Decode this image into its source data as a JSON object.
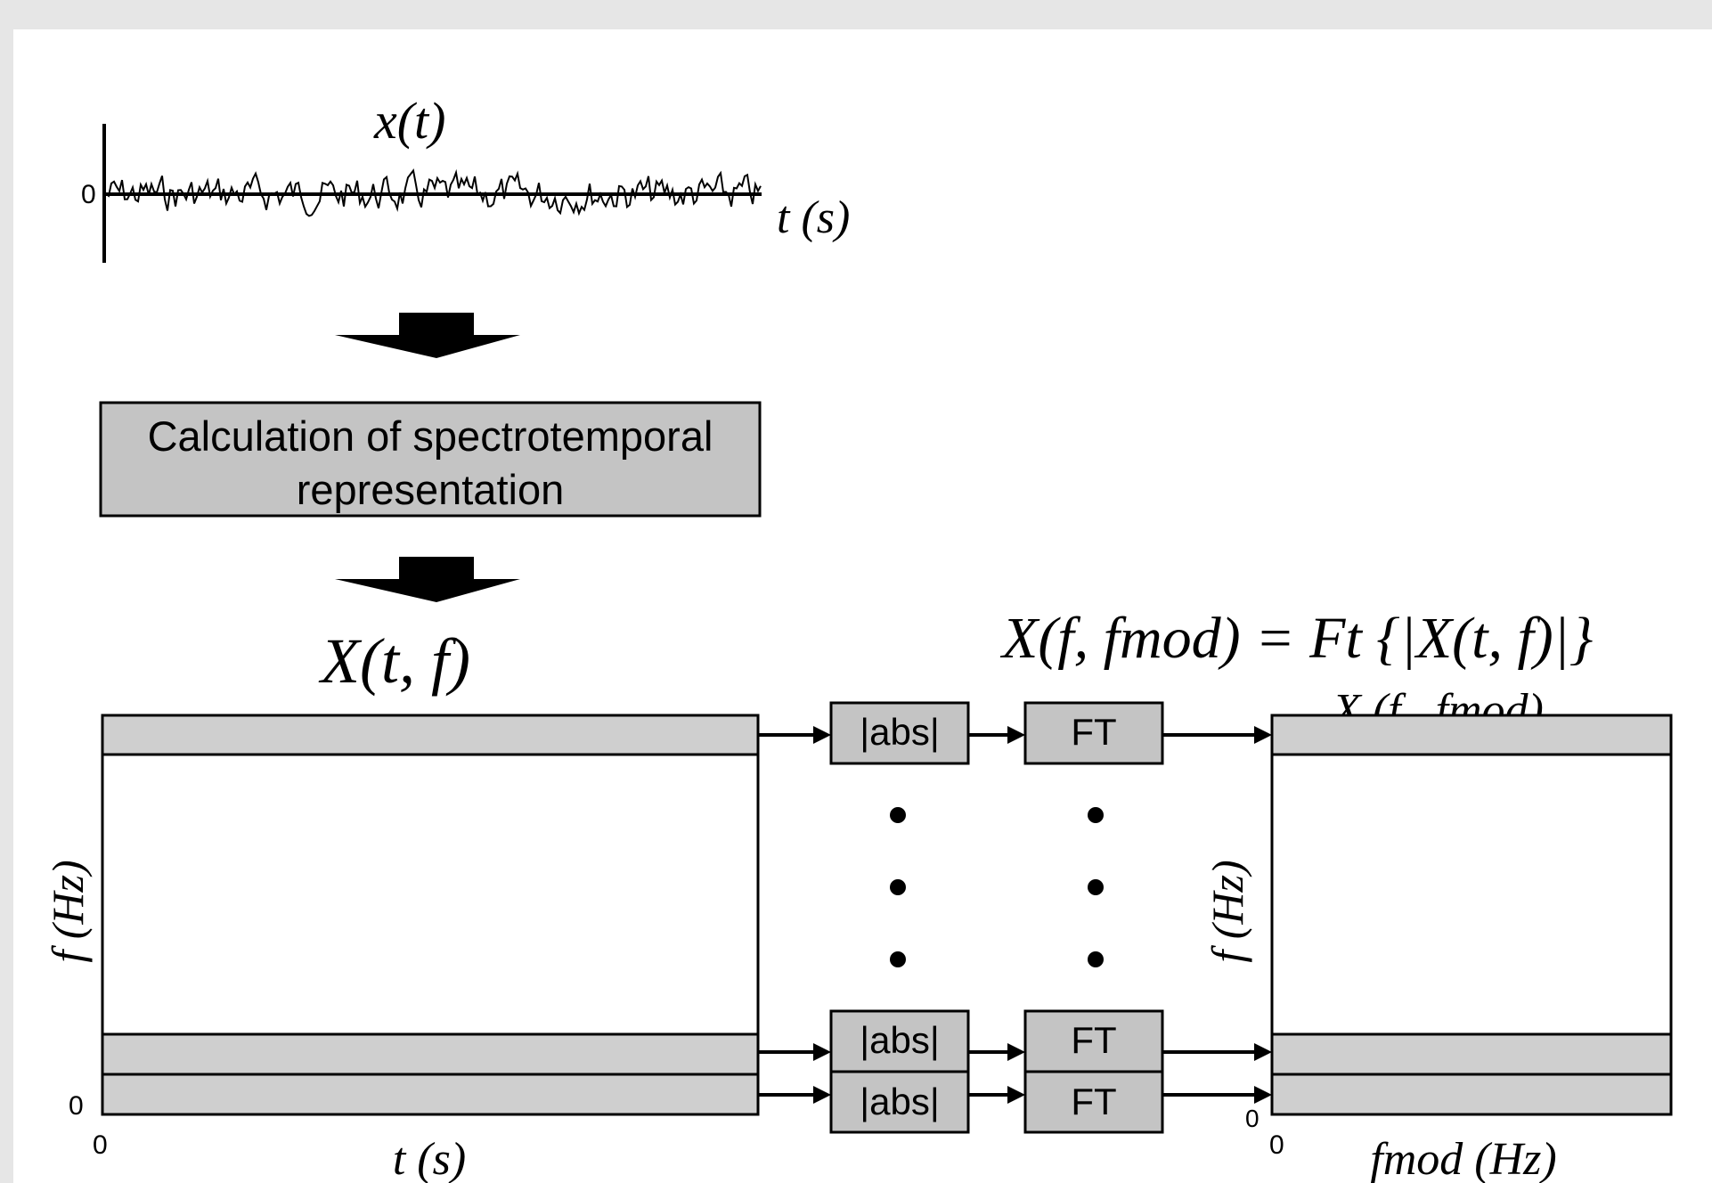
{
  "signal": {
    "title": "x(t)",
    "zero_label": "0",
    "axis_label": "t (s)"
  },
  "process_box": {
    "line1": "Calculation of spectrotemporal",
    "line2": "representation"
  },
  "spectrogram": {
    "title": "X(t, f)",
    "y_label": "f (Hz)",
    "x_label": "t (s)",
    "y_zero": "0",
    "x_zero": "0"
  },
  "pipeline": {
    "abs_label": "|abs|",
    "ft_label": "FT"
  },
  "modulation_spectrum": {
    "equation": "X(f, fmod) = Ft {|X(t, f)|}",
    "title_partial": "X (f , fmod)",
    "y_label": "f (Hz)",
    "x_label": "fmod (Hz)",
    "y_zero": "0",
    "x_zero": "0"
  },
  "colors": {
    "box_fill": "#c4c4c4",
    "band_fill": "#cfcfcf",
    "stroke": "#000000",
    "background": "#e6e6e6"
  }
}
